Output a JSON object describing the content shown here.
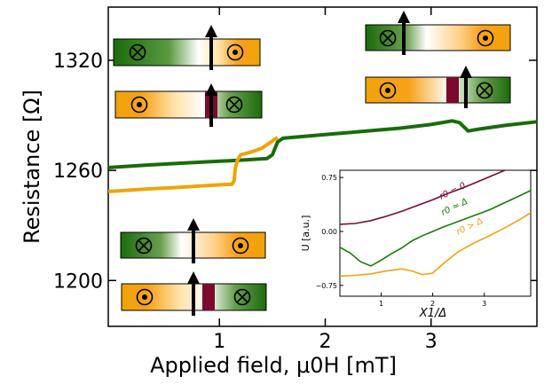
{
  "chart_data": [
    {
      "type": "line",
      "xlabel": "Applied field, μ0H [mT]",
      "ylabel": "Resistance [Ω]",
      "xlim": [
        -0.05,
        4.0
      ],
      "ylim": [
        1175,
        1349
      ],
      "xticks": [
        1,
        2,
        3
      ],
      "yticks": [
        1200,
        1260,
        1320
      ],
      "grid": false,
      "series": [
        {
          "color": "#1a6b0a",
          "points": [
            [
              -0.05,
              1261.5
            ],
            [
              0.3,
              1262.8
            ],
            [
              0.6,
              1263.8
            ],
            [
              0.9,
              1264.7
            ],
            [
              1.2,
              1265.6
            ],
            [
              1.45,
              1266.5
            ],
            [
              1.5,
              1268.5
            ],
            [
              1.55,
              1275.5
            ],
            [
              1.6,
              1277.5
            ],
            [
              1.9,
              1279
            ],
            [
              2.2,
              1280.5
            ],
            [
              2.5,
              1282
            ],
            [
              2.7,
              1283
            ],
            [
              3.0,
              1285
            ],
            [
              3.2,
              1287
            ],
            [
              3.27,
              1286
            ],
            [
              3.35,
              1281.5
            ],
            [
              3.45,
              1282.5
            ],
            [
              3.7,
              1284.5
            ],
            [
              4.0,
              1286.5
            ]
          ]
        },
        {
          "color": "#f0a30a",
          "points": [
            [
              -0.05,
              1248.5
            ],
            [
              0.3,
              1249.8
            ],
            [
              0.6,
              1250.7
            ],
            [
              0.9,
              1251.8
            ],
            [
              1.12,
              1252.5
            ],
            [
              1.14,
              1254.5
            ],
            [
              1.15,
              1261
            ],
            [
              1.17,
              1265.5
            ],
            [
              1.2,
              1268.5
            ],
            [
              1.3,
              1270
            ],
            [
              1.4,
              1272
            ],
            [
              1.45,
              1274
            ],
            [
              1.5,
              1276
            ],
            [
              1.55,
              1278
            ]
          ]
        }
      ]
    },
    {
      "type": "line",
      "xlabel": "X1/Δ",
      "ylabel": "U [a.u.]",
      "xlim": [
        0.2,
        3.9
      ],
      "ylim": [
        -0.9,
        0.85
      ],
      "xticks": [
        1,
        2,
        3
      ],
      "yticks": [
        -0.75,
        0.0,
        0.75
      ],
      "xtick_labels": [
        "1",
        "2",
        "3"
      ],
      "ytick_labels": [
        "−0.75",
        "0.00",
        "0.75"
      ],
      "annotations": [
        {
          "text": "r0 = 0",
          "color": "#7a0a30"
        },
        {
          "text": "r0 ≈ Δ",
          "color": "#1a7a0a"
        },
        {
          "text": "r0 > Δ",
          "color": "#f0a30a"
        }
      ],
      "series": [
        {
          "color": "#7a0a30",
          "x": [
            0.2,
            0.5,
            0.8,
            1.1,
            1.4,
            1.7,
            2.0,
            2.3,
            2.6,
            2.9,
            3.2,
            3.5,
            3.9
          ],
          "y": [
            0.1,
            0.11,
            0.15,
            0.21,
            0.28,
            0.36,
            0.44,
            0.53,
            0.61,
            0.7,
            0.79,
            0.88,
            1.0
          ]
        },
        {
          "color": "#1a7a0a",
          "x": [
            0.2,
            0.4,
            0.6,
            0.8,
            1.0,
            1.2,
            1.4,
            1.6,
            1.8,
            2.0,
            2.2,
            2.5,
            2.8,
            3.1,
            3.4,
            3.7,
            3.9
          ],
          "y": [
            -0.22,
            -0.3,
            -0.42,
            -0.48,
            -0.4,
            -0.31,
            -0.23,
            -0.13,
            -0.06,
            0.0,
            0.06,
            0.14,
            0.22,
            0.3,
            0.4,
            0.5,
            0.57
          ]
        },
        {
          "color": "#f0a30a",
          "x": [
            0.2,
            0.5,
            0.8,
            1.1,
            1.4,
            1.6,
            1.8,
            2.0,
            2.2,
            2.5,
            2.8,
            3.1,
            3.4,
            3.7,
            3.9
          ],
          "y": [
            -0.62,
            -0.61,
            -0.59,
            -0.55,
            -0.52,
            -0.55,
            -0.6,
            -0.58,
            -0.45,
            -0.28,
            -0.16,
            -0.06,
            0.05,
            0.17,
            0.26
          ]
        }
      ]
    }
  ]
}
